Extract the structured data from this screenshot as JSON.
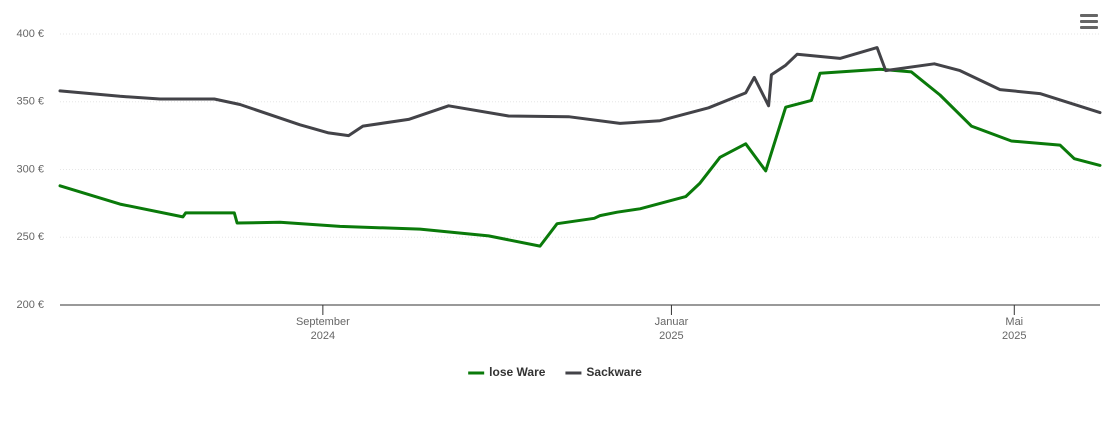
{
  "chart_data": {
    "type": "line",
    "xlim": [
      "2024-06-01",
      "2025-05-31"
    ],
    "xticks": [
      {
        "value": "2024-09-01",
        "label": [
          "September",
          "2024"
        ]
      },
      {
        "value": "2025-01-01",
        "label": [
          "Januar",
          "2025"
        ]
      },
      {
        "value": "2025-05-01",
        "label": [
          "Mai",
          "2025"
        ]
      }
    ],
    "ylim": [
      200,
      400
    ],
    "yticks": [
      {
        "value": 200,
        "label": "200 €"
      },
      {
        "value": 250,
        "label": "250 €"
      },
      {
        "value": 300,
        "label": "300 €"
      },
      {
        "value": 350,
        "label": "350 €"
      },
      {
        "value": 400,
        "label": "400 €"
      }
    ],
    "grid": true,
    "legend": "bottom",
    "series": [
      {
        "name": "lose Ware",
        "color": "#0a7a0a",
        "x": [
          "2024-06-01",
          "2024-06-22",
          "2024-07-14",
          "2024-07-15",
          "2024-08-01",
          "2024-08-02",
          "2024-08-17",
          "2024-09-07",
          "2024-10-05",
          "2024-10-29",
          "2024-11-16",
          "2024-11-22",
          "2024-12-05",
          "2024-12-07",
          "2024-12-13",
          "2024-12-21",
          "2025-01-06",
          "2025-01-11",
          "2025-01-18",
          "2025-01-27",
          "2025-02-03",
          "2025-02-10",
          "2025-02-19",
          "2025-02-22",
          "2025-03-15",
          "2025-03-26",
          "2025-04-05",
          "2025-04-16",
          "2025-04-30",
          "2025-05-17",
          "2025-05-22",
          "2025-05-31"
        ],
        "values": [
          288,
          274.5,
          265,
          268,
          268,
          260.5,
          261,
          258,
          256,
          251,
          243.5,
          260,
          264,
          266,
          268.5,
          271,
          280,
          290,
          309,
          319,
          299,
          346,
          351,
          371,
          374,
          372,
          355,
          332,
          321,
          318,
          308,
          303
        ]
      },
      {
        "name": "Sackware",
        "color": "#434348",
        "x": [
          "2024-06-01",
          "2024-06-22",
          "2024-07-06",
          "2024-07-25",
          "2024-08-03",
          "2024-08-24",
          "2024-09-03",
          "2024-09-10",
          "2024-09-15",
          "2024-10-01",
          "2024-10-15",
          "2024-11-05",
          "2024-11-26",
          "2024-12-14",
          "2024-12-28",
          "2025-01-14",
          "2025-01-27",
          "2025-01-30",
          "2025-02-04",
          "2025-02-05",
          "2025-02-10",
          "2025-02-14",
          "2025-03-01",
          "2025-03-14",
          "2025-03-17",
          "2025-04-03",
          "2025-04-12",
          "2025-04-26",
          "2025-05-10",
          "2025-05-31"
        ],
        "values": [
          358,
          354,
          352,
          352,
          348,
          333,
          327,
          325,
          332,
          337,
          347,
          339.5,
          339,
          334,
          336,
          345.5,
          356.5,
          368,
          347,
          370,
          377,
          385,
          382,
          390,
          373,
          378,
          373,
          359,
          356,
          342
        ]
      }
    ]
  }
}
